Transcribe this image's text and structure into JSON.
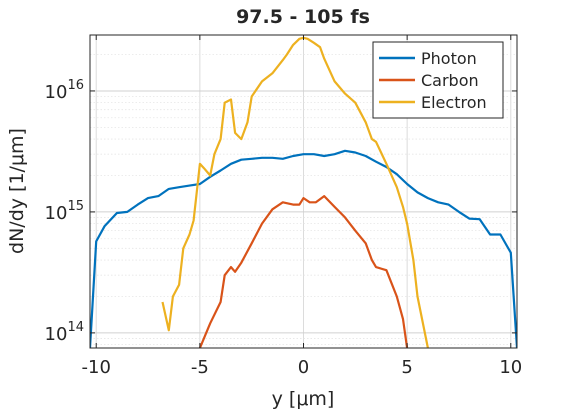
{
  "chart_data": {
    "type": "line",
    "title": "97.5 - 105 fs",
    "xlabel": "y [μm]",
    "ylabel": "dN/dy [1/μm]",
    "xlim": [
      -10.3,
      10.3
    ],
    "ylim": [
      75000000000000.0,
      2.9e+16
    ],
    "yscale": "log",
    "grid": true,
    "minor_grid": true,
    "legend_position": "top-right",
    "x_ticks": [
      {
        "value": -10,
        "label": "-10"
      },
      {
        "value": -5,
        "label": "-5"
      },
      {
        "value": 0,
        "label": "0"
      },
      {
        "value": 5,
        "label": "5"
      },
      {
        "value": 10,
        "label": "10"
      }
    ],
    "y_ticks": [
      {
        "value": 100000000000000.0,
        "base": "10",
        "exp": "14"
      },
      {
        "value": 1000000000000000.0,
        "base": "10",
        "exp": "15"
      },
      {
        "value": 1e+16,
        "base": "10",
        "exp": "16"
      }
    ],
    "series": [
      {
        "name": "Photon",
        "color": "#0072BD",
        "x": [
          -10.3,
          -10.0,
          -9.6,
          -9.0,
          -8.5,
          -8.0,
          -7.5,
          -7.0,
          -6.5,
          -6.0,
          -5.5,
          -5.0,
          -4.5,
          -4.0,
          -3.5,
          -3.0,
          -2.5,
          -2.0,
          -1.5,
          -1.0,
          -0.5,
          0.0,
          0.5,
          1.0,
          1.5,
          2.0,
          2.5,
          3.0,
          3.5,
          4.0,
          4.5,
          5.0,
          5.5,
          6.0,
          6.5,
          7.0,
          7.5,
          8.0,
          8.5,
          9.0,
          9.5,
          10.0,
          10.3
        ],
        "y": [
          75000000000000.0,
          570000000000000.0,
          760000000000000.0,
          980000000000000.0,
          1000000000000000.0,
          1150000000000000.0,
          1300000000000000.0,
          1350000000000000.0,
          1550000000000000.0,
          1600000000000000.0,
          1650000000000000.0,
          1700000000000000.0,
          1950000000000000.0,
          2200000000000000.0,
          2500000000000000.0,
          2700000000000000.0,
          2750000000000000.0,
          2800000000000000.0,
          2800000000000000.0,
          2750000000000000.0,
          2900000000000000.0,
          3000000000000000.0,
          3000000000000000.0,
          2900000000000000.0,
          3000000000000000.0,
          3200000000000000.0,
          3100000000000000.0,
          2900000000000000.0,
          2600000000000000.0,
          2350000000000000.0,
          2050000000000000.0,
          1700000000000000.0,
          1450000000000000.0,
          1300000000000000.0,
          1200000000000000.0,
          1150000000000000.0,
          1000000000000000.0,
          880000000000000.0,
          870000000000000.0,
          650000000000000.0,
          650000000000000.0,
          460000000000000.0,
          75000000000000.0
        ]
      },
      {
        "name": "Carbon",
        "color": "#D95319",
        "x": [
          -5.0,
          -4.5,
          -4.0,
          -3.8,
          -3.5,
          -3.3,
          -3.0,
          -2.5,
          -2.0,
          -1.5,
          -1.0,
          -0.5,
          -0.2,
          0.0,
          0.3,
          0.6,
          1.0,
          1.5,
          2.0,
          2.5,
          3.0,
          3.3,
          3.5,
          4.0,
          4.5,
          4.8,
          5.0
        ],
        "y": [
          75000000000000.0,
          120000000000000.0,
          180000000000000.0,
          300000000000000.0,
          350000000000000.0,
          320000000000000.0,
          380000000000000.0,
          550000000000000.0,
          800000000000000.0,
          1050000000000000.0,
          1200000000000000.0,
          1150000000000000.0,
          1150000000000000.0,
          1300000000000000.0,
          1200000000000000.0,
          1200000000000000.0,
          1350000000000000.0,
          1100000000000000.0,
          900000000000000.0,
          700000000000000.0,
          550000000000000.0,
          400000000000000.0,
          350000000000000.0,
          330000000000000.0,
          200000000000000.0,
          130000000000000.0,
          75000000000000.0
        ]
      },
      {
        "name": "Electron",
        "color": "#EDB120",
        "x": [
          -6.8,
          -6.5,
          -6.3,
          -6.0,
          -5.8,
          -5.5,
          -5.3,
          -5.0,
          -4.8,
          -4.5,
          -4.3,
          -4.0,
          -3.8,
          -3.5,
          -3.3,
          -3.0,
          -2.7,
          -2.5,
          -2.0,
          -1.5,
          -1.0,
          -0.8,
          -0.5,
          -0.2,
          0.0,
          0.2,
          0.5,
          0.8,
          1.0,
          1.5,
          2.0,
          2.5,
          3.0,
          3.3,
          3.5,
          4.0,
          4.5,
          4.8,
          5.0,
          5.3,
          5.5,
          6.0
        ],
        "y": [
          180000000000000.0,
          105000000000000.0,
          200000000000000.0,
          250000000000000.0,
          500000000000000.0,
          650000000000000.0,
          850000000000000.0,
          2500000000000000.0,
          2300000000000000.0,
          2000000000000000.0,
          3000000000000000.0,
          4000000000000000.0,
          8000000000000000.0,
          8500000000000000.0,
          4500000000000000.0,
          4000000000000000.0,
          5500000000000000.0,
          9000000000000000.0,
          1.2e+16,
          1.4e+16,
          1.8e+16,
          2e+16,
          2.4e+16,
          2.7e+16,
          2.75e+16,
          2.7e+16,
          2.5e+16,
          2.3e+16,
          1.85e+16,
          1.2e+16,
          9500000000000000.0,
          8000000000000000.0,
          5500000000000000.0,
          4000000000000000.0,
          3800000000000000.0,
          2500000000000000.0,
          1600000000000000.0,
          1100000000000000.0,
          800000000000000.0,
          400000000000000.0,
          200000000000000.0,
          75000000000000.0
        ]
      }
    ]
  }
}
